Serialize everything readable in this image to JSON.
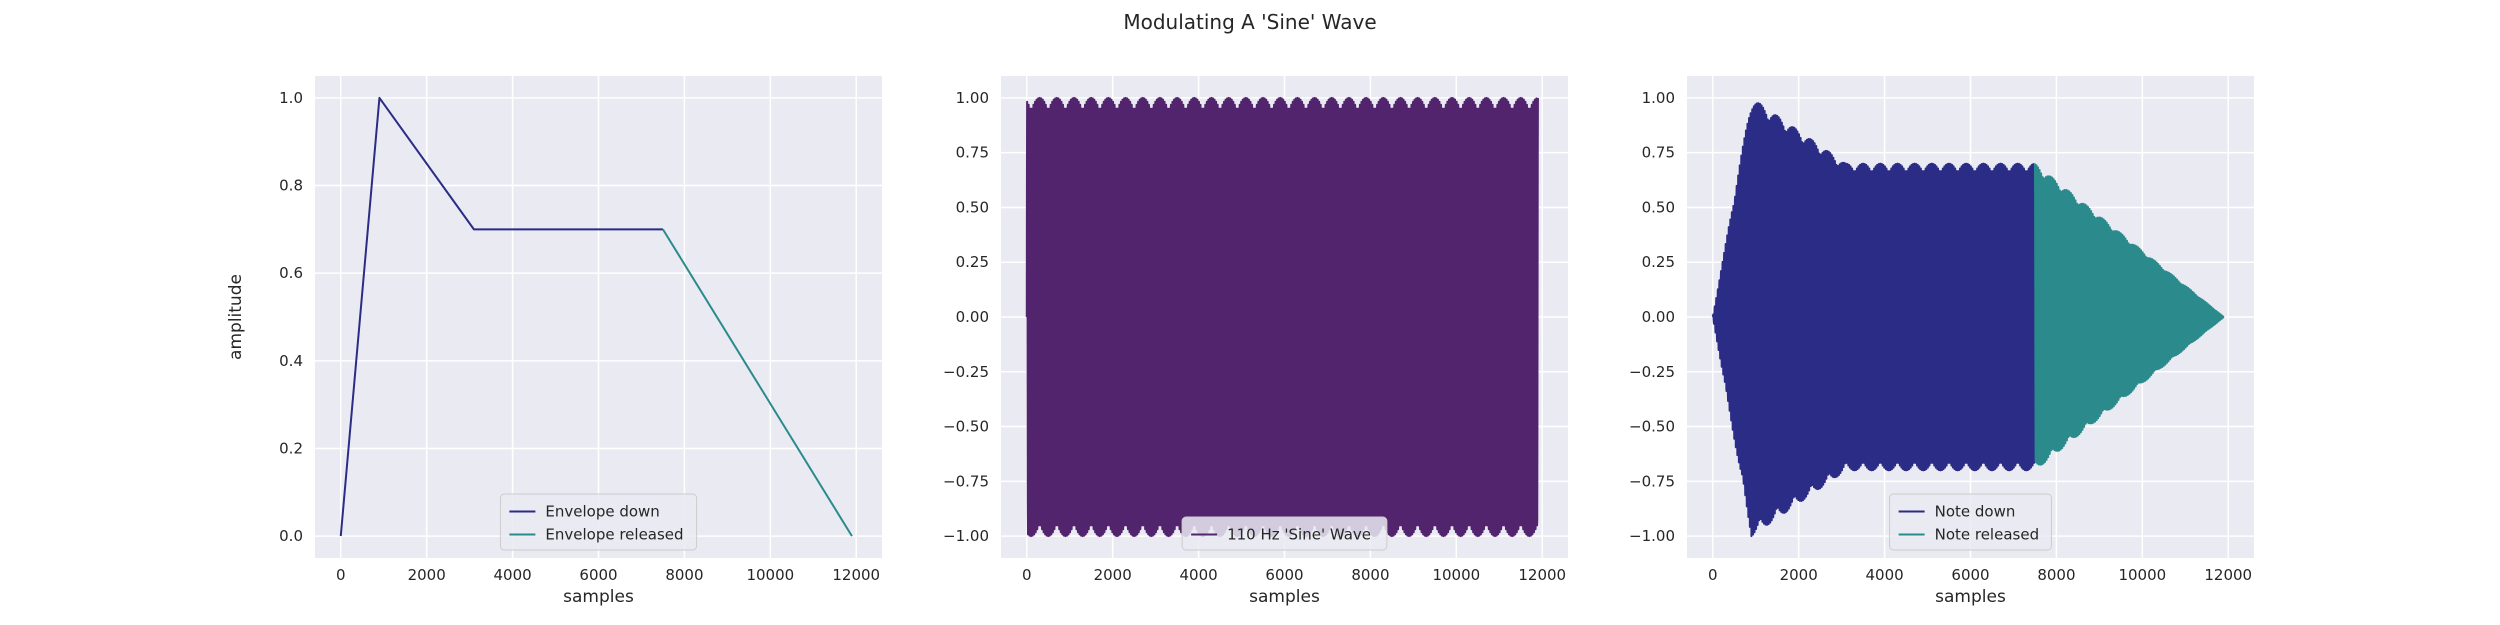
{
  "figure": {
    "title": "Modulating A 'Sine' Wave"
  },
  "chart_data": [
    {
      "type": "line",
      "title": "",
      "xlabel": "samples",
      "ylabel": "amplitude",
      "xlim": [
        -600,
        12600
      ],
      "ylim": [
        -0.05,
        1.05
      ],
      "xticks": [
        0,
        2000,
        4000,
        6000,
        8000,
        10000,
        12000
      ],
      "yticks": [
        0.0,
        0.2,
        0.4,
        0.6,
        0.8,
        1.0
      ],
      "ytick_decimals": 1,
      "grid": true,
      "legend": "lower center",
      "series": [
        {
          "name": "Envelope down",
          "color": "#2b2c85",
          "x": [
            0,
            900,
            3100,
            7500
          ],
          "y": [
            0.0,
            1.0,
            0.7,
            0.7
          ]
        },
        {
          "name": "Envelope released",
          "color": "#2a8a8c",
          "x": [
            7500,
            11900
          ],
          "y": [
            0.7,
            0.0
          ]
        }
      ]
    },
    {
      "type": "line",
      "title": "",
      "xlabel": "samples",
      "ylabel": "",
      "xlim": [
        -600,
        12600
      ],
      "ylim": [
        -1.1,
        1.1
      ],
      "xticks": [
        0,
        2000,
        4000,
        6000,
        8000,
        10000,
        12000
      ],
      "yticks": [
        -1.0,
        -0.75,
        -0.5,
        -0.25,
        0.0,
        0.25,
        0.5,
        0.75,
        1.0
      ],
      "ytick_decimals": 2,
      "grid": true,
      "legend": "lower center",
      "series": [
        {
          "name": "110 Hz 'Sine' Wave",
          "color": "#52246e",
          "frequency_hz": 110,
          "sample_rate": 4000,
          "x_range": [
            0,
            11900
          ]
        }
      ]
    },
    {
      "type": "line",
      "title": "",
      "xlabel": "samples",
      "ylabel": "",
      "xlim": [
        -600,
        12600
      ],
      "ylim": [
        -1.1,
        1.1
      ],
      "xticks": [
        0,
        2000,
        4000,
        6000,
        8000,
        10000,
        12000
      ],
      "yticks": [
        -1.0,
        -0.75,
        -0.5,
        -0.25,
        0.0,
        0.25,
        0.5,
        0.75,
        1.0
      ],
      "ytick_decimals": 2,
      "grid": true,
      "legend": "lower center",
      "series": [
        {
          "name": "Note down",
          "color": "#2b2c85",
          "x_range": [
            0,
            7500
          ]
        },
        {
          "name": "Note released",
          "color": "#2a8a8c",
          "x_range": [
            7500,
            11900
          ]
        }
      ],
      "carrier": {
        "frequency_hz": 110,
        "sample_rate": 4000
      },
      "envelope": {
        "x": [
          0,
          900,
          3100,
          7500,
          11900
        ],
        "y": [
          0.0,
          1.0,
          0.7,
          0.7,
          0.0
        ]
      }
    }
  ]
}
